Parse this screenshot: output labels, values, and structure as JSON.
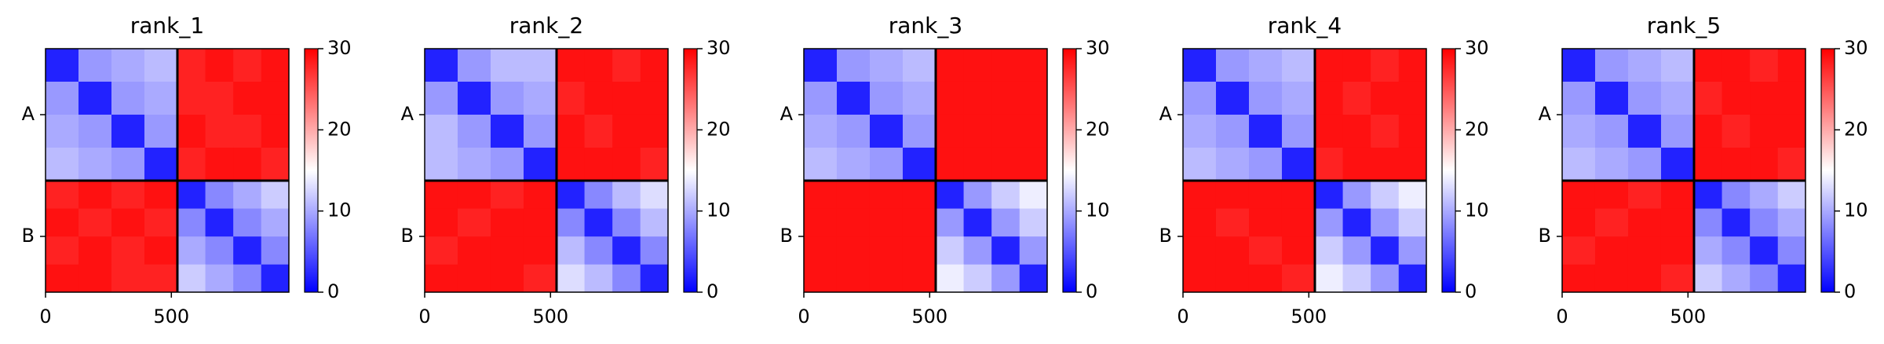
{
  "chart_data": [
    {
      "type": "heatmap",
      "title": "rank_1",
      "edges": [
        0,
        131,
        262,
        393,
        524,
        635,
        746,
        857,
        967
      ],
      "xlim": [
        0,
        967
      ],
      "ylim": [
        967,
        0
      ],
      "xticks": [
        0,
        500
      ],
      "yticks": [
        {
          "value": 262,
          "label": "A"
        },
        {
          "value": 745.5,
          "label": "B"
        }
      ],
      "boundaries": [
        524
      ],
      "clim": [
        0,
        30
      ],
      "cticks": [
        0,
        10,
        20,
        30
      ],
      "colormap": [
        "#0000ff",
        "#ffffff",
        "#ff0000"
      ],
      "matrix": [
        [
          2,
          9,
          10,
          11,
          28,
          29,
          28,
          29
        ],
        [
          9,
          2,
          9,
          10,
          28,
          28,
          29,
          29
        ],
        [
          10,
          9,
          2,
          9,
          29,
          28,
          28,
          29
        ],
        [
          11,
          10,
          9,
          2,
          28,
          29,
          29,
          28
        ],
        [
          28,
          29,
          28,
          29,
          2,
          8,
          10,
          12
        ],
        [
          29,
          28,
          29,
          28,
          8,
          2,
          8,
          10
        ],
        [
          28,
          29,
          28,
          29,
          10,
          8,
          2,
          8
        ],
        [
          29,
          29,
          28,
          28,
          12,
          10,
          8,
          2
        ]
      ]
    },
    {
      "type": "heatmap",
      "title": "rank_2",
      "edges": [
        0,
        131,
        262,
        393,
        524,
        635,
        746,
        857,
        967
      ],
      "xlim": [
        0,
        967
      ],
      "ylim": [
        967,
        0
      ],
      "xticks": [
        0,
        500
      ],
      "yticks": [
        {
          "value": 262,
          "label": "A"
        },
        {
          "value": 745.5,
          "label": "B"
        }
      ],
      "boundaries": [
        524
      ],
      "clim": [
        0,
        30
      ],
      "cticks": [
        0,
        10,
        20,
        30
      ],
      "colormap": [
        "#0000ff",
        "#ffffff",
        "#ff0000"
      ],
      "matrix": [
        [
          2,
          9,
          11,
          11,
          29,
          29,
          28,
          29
        ],
        [
          9,
          2,
          9,
          10,
          28,
          29,
          29,
          29
        ],
        [
          11,
          9,
          2,
          9,
          29,
          28,
          29,
          29
        ],
        [
          11,
          10,
          9,
          2,
          29,
          29,
          29,
          28
        ],
        [
          29,
          29,
          28,
          29,
          2,
          8,
          11,
          13
        ],
        [
          29,
          28,
          29,
          29,
          8,
          2,
          8,
          11
        ],
        [
          28,
          29,
          29,
          29,
          11,
          8,
          2,
          8
        ],
        [
          29,
          29,
          29,
          28,
          13,
          11,
          8,
          2
        ]
      ]
    },
    {
      "type": "heatmap",
      "title": "rank_3",
      "edges": [
        0,
        131,
        262,
        393,
        524,
        635,
        746,
        857,
        967
      ],
      "xlim": [
        0,
        967
      ],
      "ylim": [
        967,
        0
      ],
      "xticks": [
        0,
        500
      ],
      "yticks": [
        {
          "value": 262,
          "label": "A"
        },
        {
          "value": 745.5,
          "label": "B"
        }
      ],
      "boundaries": [
        524
      ],
      "clim": [
        0,
        30
      ],
      "cticks": [
        0,
        10,
        20,
        30
      ],
      "colormap": [
        "#0000ff",
        "#ffffff",
        "#ff0000"
      ],
      "matrix": [
        [
          2,
          9,
          10,
          11,
          29,
          29,
          29,
          29
        ],
        [
          9,
          2,
          9,
          10,
          29,
          29,
          29,
          29
        ],
        [
          10,
          9,
          2,
          9,
          29,
          29,
          29,
          29
        ],
        [
          11,
          10,
          9,
          2,
          29,
          29,
          29,
          29
        ],
        [
          29,
          29,
          29,
          29,
          2,
          9,
          12,
          14
        ],
        [
          29,
          29,
          29,
          29,
          9,
          2,
          9,
          12
        ],
        [
          29,
          29,
          29,
          29,
          12,
          9,
          2,
          9
        ],
        [
          29,
          29,
          29,
          29,
          14,
          12,
          9,
          2
        ]
      ]
    },
    {
      "type": "heatmap",
      "title": "rank_4",
      "edges": [
        0,
        131,
        262,
        393,
        524,
        635,
        746,
        857,
        967
      ],
      "xlim": [
        0,
        967
      ],
      "ylim": [
        967,
        0
      ],
      "xticks": [
        0,
        500
      ],
      "yticks": [
        {
          "value": 262,
          "label": "A"
        },
        {
          "value": 745.5,
          "label": "B"
        }
      ],
      "boundaries": [
        524
      ],
      "clim": [
        0,
        30
      ],
      "cticks": [
        0,
        10,
        20,
        30
      ],
      "colormap": [
        "#0000ff",
        "#ffffff",
        "#ff0000"
      ],
      "matrix": [
        [
          2,
          9,
          10,
          11,
          29,
          29,
          28,
          29
        ],
        [
          9,
          2,
          9,
          10,
          29,
          28,
          29,
          29
        ],
        [
          10,
          9,
          2,
          9,
          29,
          29,
          28,
          29
        ],
        [
          11,
          10,
          9,
          2,
          28,
          29,
          29,
          29
        ],
        [
          29,
          29,
          29,
          29,
          2,
          9,
          12,
          14
        ],
        [
          29,
          28,
          29,
          29,
          9,
          2,
          9,
          12
        ],
        [
          29,
          29,
          28,
          29,
          12,
          9,
          2,
          9
        ],
        [
          29,
          29,
          29,
          28,
          14,
          12,
          9,
          2
        ]
      ]
    },
    {
      "type": "heatmap",
      "title": "rank_5",
      "edges": [
        0,
        131,
        262,
        393,
        524,
        635,
        746,
        857,
        967
      ],
      "xlim": [
        0,
        967
      ],
      "ylim": [
        967,
        0
      ],
      "xticks": [
        0,
        500
      ],
      "yticks": [
        {
          "value": 262,
          "label": "A"
        },
        {
          "value": 745.5,
          "label": "B"
        }
      ],
      "boundaries": [
        524
      ],
      "clim": [
        0,
        30
      ],
      "cticks": [
        0,
        10,
        20,
        30
      ],
      "colormap": [
        "#0000ff",
        "#ffffff",
        "#ff0000"
      ],
      "matrix": [
        [
          2,
          9,
          10,
          11,
          29,
          29,
          28,
          29
        ],
        [
          9,
          2,
          9,
          10,
          28,
          29,
          29,
          29
        ],
        [
          10,
          9,
          2,
          9,
          29,
          28,
          29,
          29
        ],
        [
          11,
          10,
          9,
          2,
          29,
          29,
          29,
          28
        ],
        [
          29,
          29,
          28,
          29,
          2,
          8,
          10,
          12
        ],
        [
          29,
          28,
          29,
          29,
          8,
          2,
          8,
          10
        ],
        [
          28,
          29,
          29,
          29,
          10,
          8,
          2,
          8
        ],
        [
          29,
          29,
          29,
          28,
          12,
          10,
          8,
          2
        ]
      ]
    }
  ]
}
